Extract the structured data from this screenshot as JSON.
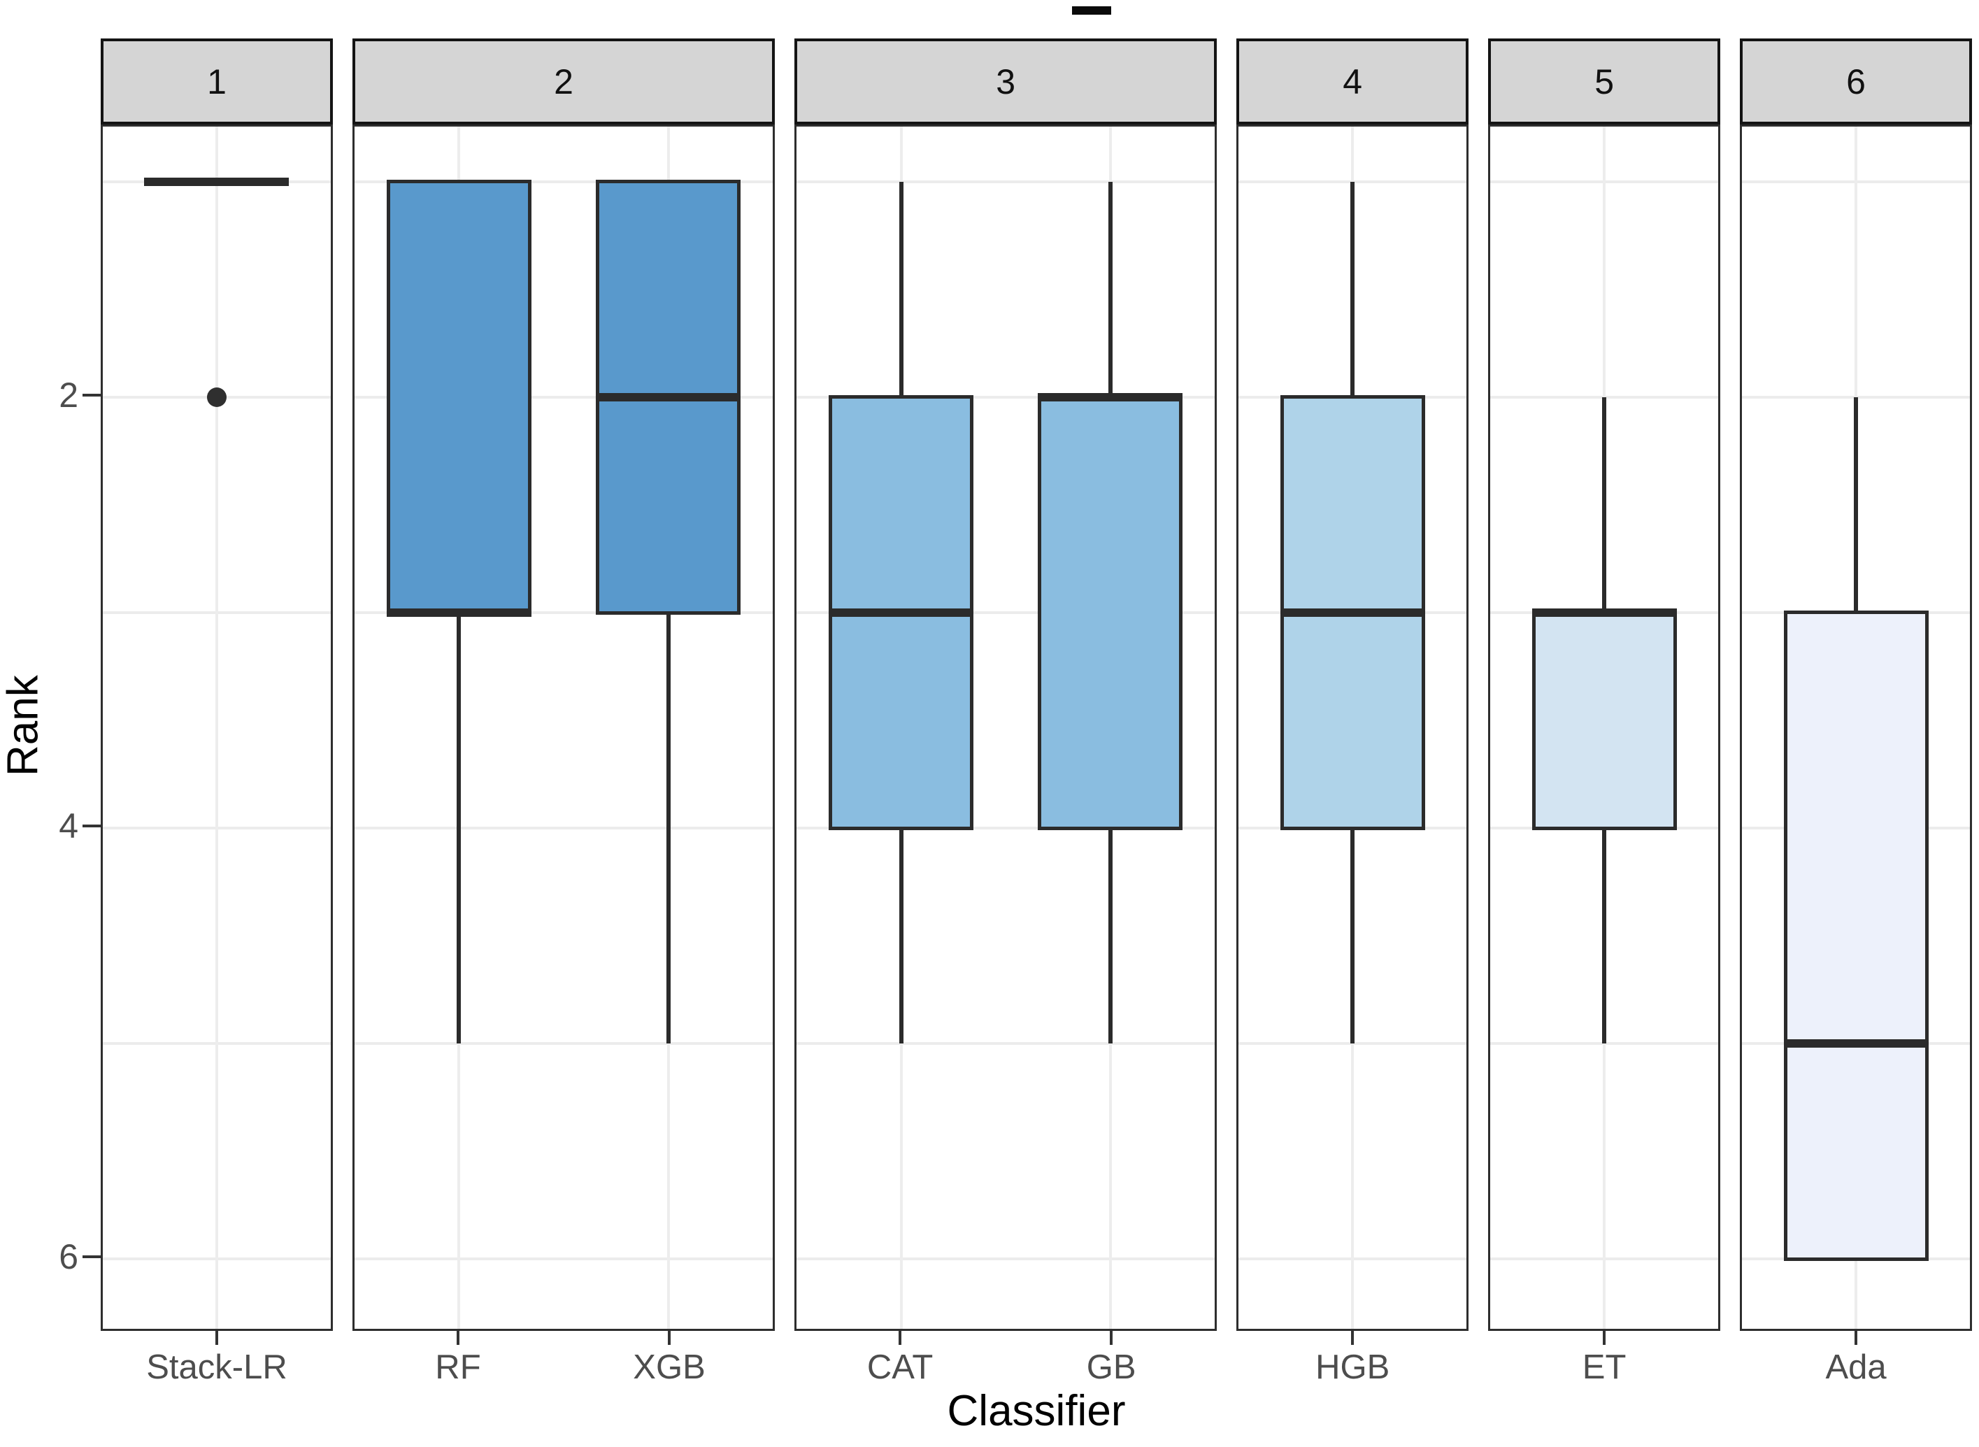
{
  "chart_data": {
    "type": "boxplot",
    "title": "",
    "xlabel": "Classifier",
    "ylabel": "Rank",
    "y_axis": {
      "reversed": true,
      "ticks": [
        2,
        4,
        6
      ],
      "gridline_ranks": [
        1,
        2,
        3,
        4,
        5,
        6
      ],
      "range_top_rank": 0.74,
      "range_bottom_rank": 6.33
    },
    "facets": [
      {
        "strip_label": "1",
        "boxes": [
          {
            "classifier": "Stack-LR",
            "q1": 1,
            "median": 1,
            "q3": 1,
            "whisker_top_rank": 1,
            "whisker_bottom_rank": 1,
            "outliers": [
              2
            ],
            "fill": "#3d85bd"
          }
        ]
      },
      {
        "strip_label": "2",
        "boxes": [
          {
            "classifier": "RF",
            "q1": 1,
            "median": 3,
            "q3": 3,
            "whisker_top_rank": 1,
            "whisker_bottom_rank": 5,
            "outliers": [],
            "fill": "#5999cc"
          },
          {
            "classifier": "XGB",
            "q1": 1,
            "median": 2,
            "q3": 3,
            "whisker_top_rank": 1,
            "whisker_bottom_rank": 5,
            "outliers": [],
            "fill": "#5999cc"
          }
        ]
      },
      {
        "strip_label": "3",
        "boxes": [
          {
            "classifier": "CAT",
            "q1": 2,
            "median": 3,
            "q3": 4,
            "whisker_top_rank": 1,
            "whisker_bottom_rank": 5,
            "outliers": [],
            "fill": "#8abde0"
          },
          {
            "classifier": "GB",
            "q1": 2,
            "median": 2,
            "q3": 4,
            "whisker_top_rank": 1,
            "whisker_bottom_rank": 5,
            "outliers": [],
            "fill": "#8abde0"
          }
        ]
      },
      {
        "strip_label": "4",
        "boxes": [
          {
            "classifier": "HGB",
            "q1": 2,
            "median": 3,
            "q3": 4,
            "whisker_top_rank": 1,
            "whisker_bottom_rank": 5,
            "outliers": [],
            "fill": "#afd3e9"
          }
        ]
      },
      {
        "strip_label": "5",
        "boxes": [
          {
            "classifier": "ET",
            "q1": 3,
            "median": 3,
            "q3": 4,
            "whisker_top_rank": 2,
            "whisker_bottom_rank": 5,
            "outliers": [],
            "fill": "#d3e4f2"
          }
        ]
      },
      {
        "strip_label": "6",
        "boxes": [
          {
            "classifier": "Ada",
            "q1": 3,
            "median": 5,
            "q3": 6,
            "whisker_top_rank": 2,
            "whisker_bottom_rank": 6,
            "outliers": [],
            "fill": "#edf1fb"
          }
        ]
      }
    ],
    "style": {
      "strip_fill": "#d5d5d5",
      "box_border": "#2b2b2b",
      "gridline": "#ececec",
      "tick_text_color": "#4d4d4d",
      "axis_title_color": "#000000"
    }
  }
}
